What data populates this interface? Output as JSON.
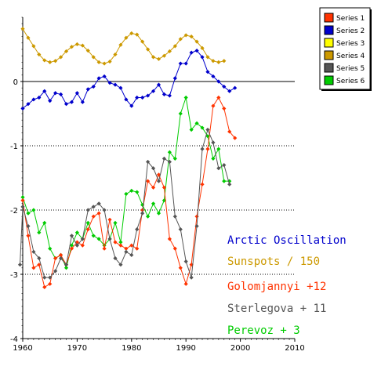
{
  "chart_data": {
    "type": "line",
    "xlim": [
      1960,
      2010
    ],
    "ylim": [
      -4,
      1
    ],
    "x_ticks": [
      "1960",
      "1970",
      "1980",
      "1990",
      "2000",
      "2010"
    ],
    "y_ticks": [
      "0",
      "-1",
      "-2",
      "-3",
      "-4"
    ],
    "y_tick_values": [
      0,
      -1,
      -2,
      -3,
      -4
    ],
    "x_tick_values": [
      1960,
      1970,
      1980,
      1990,
      2000,
      2010
    ],
    "grid": "horizontal dotted at -1, -2, -3; solid zero line",
    "legend_position": "top-right",
    "series": [
      {
        "name": "Series 1",
        "color": "#ff3300",
        "x": [
          1960,
          1961,
          1962,
          1963,
          1964,
          1965,
          1966,
          1967,
          1968,
          1969,
          1970,
          1971,
          1972,
          1973,
          1974,
          1975,
          1976,
          1977,
          1978,
          1979,
          1980,
          1981,
          1982,
          1983,
          1984,
          1985,
          1986,
          1987,
          1988,
          1989,
          1990,
          1991,
          1992,
          1993,
          1994,
          1995,
          1996,
          1997,
          1998,
          1999
        ],
        "y": [
          -1.85,
          -2.4,
          -2.9,
          -2.85,
          -3.2,
          -3.15,
          -2.75,
          -2.7,
          -2.85,
          -2.6,
          -2.5,
          -2.55,
          -2.3,
          -2.1,
          -2.05,
          -2.6,
          -2.15,
          -2.5,
          -2.55,
          -2.6,
          -2.55,
          -2.6,
          -2.0,
          -1.55,
          -1.65,
          -1.45,
          -1.65,
          -2.45,
          -2.6,
          -2.9,
          -3.15,
          -2.85,
          -2.1,
          -1.6,
          -1.05,
          -0.38,
          -0.25,
          -0.42,
          -0.78,
          -0.88
        ]
      },
      {
        "name": "Series 2",
        "color": "#0000cc",
        "x": [
          1960,
          1961,
          1962,
          1963,
          1964,
          1965,
          1966,
          1967,
          1968,
          1969,
          1970,
          1971,
          1972,
          1973,
          1974,
          1975,
          1976,
          1977,
          1978,
          1979,
          1980,
          1981,
          1982,
          1983,
          1984,
          1985,
          1986,
          1987,
          1988,
          1989,
          1990,
          1991,
          1992,
          1993,
          1994,
          1995,
          1996,
          1997,
          1998,
          1999
        ],
        "y": [
          -0.42,
          -0.35,
          -0.28,
          -0.25,
          -0.15,
          -0.3,
          -0.18,
          -0.2,
          -0.35,
          -0.32,
          -0.18,
          -0.32,
          -0.12,
          -0.08,
          0.05,
          0.08,
          -0.02,
          -0.05,
          -0.1,
          -0.28,
          -0.38,
          -0.25,
          -0.25,
          -0.22,
          -0.15,
          -0.05,
          -0.2,
          -0.22,
          0.05,
          0.28,
          0.28,
          0.45,
          0.48,
          0.38,
          0.15,
          0.08,
          0.0,
          -0.08,
          -0.15,
          -0.1
        ]
      },
      {
        "name": "Series 3",
        "color": "#ffff00",
        "x": [],
        "y": []
      },
      {
        "name": "Series 4",
        "color": "#cc9900",
        "x": [
          1960,
          1961,
          1962,
          1963,
          1964,
          1965,
          1966,
          1967,
          1968,
          1969,
          1970,
          1971,
          1972,
          1973,
          1974,
          1975,
          1976,
          1977,
          1978,
          1979,
          1980,
          1981,
          1982,
          1983,
          1984,
          1985,
          1986,
          1987,
          1988,
          1989,
          1990,
          1991,
          1992,
          1993,
          1994,
          1995,
          1996,
          1997
        ],
        "y": [
          0.82,
          0.68,
          0.55,
          0.42,
          0.33,
          0.3,
          0.32,
          0.38,
          0.47,
          0.54,
          0.58,
          0.56,
          0.48,
          0.38,
          0.3,
          0.28,
          0.31,
          0.42,
          0.57,
          0.68,
          0.75,
          0.73,
          0.62,
          0.5,
          0.38,
          0.35,
          0.4,
          0.47,
          0.55,
          0.66,
          0.72,
          0.7,
          0.62,
          0.52,
          0.38,
          0.32,
          0.3,
          0.32
        ]
      },
      {
        "name": "Series 5",
        "color": "#555555",
        "x": [
          1959.5,
          1960,
          1961,
          1962,
          1963,
          1964,
          1965,
          1966,
          1967,
          1968,
          1969,
          1970,
          1971,
          1972,
          1973,
          1974,
          1975,
          1976,
          1977,
          1978,
          1979,
          1980,
          1981,
          1982,
          1983,
          1984,
          1985,
          1986,
          1987,
          1988,
          1989,
          1990,
          1991,
          1992,
          1993,
          1994,
          1995,
          1996,
          1997,
          1998
        ],
        "y": [
          -2.85,
          -1.95,
          -2.25,
          -2.65,
          -2.75,
          -3.05,
          -3.05,
          -2.95,
          -2.75,
          -2.85,
          -2.4,
          -2.55,
          -2.45,
          -2.0,
          -1.95,
          -1.9,
          -2.0,
          -2.45,
          -2.75,
          -2.85,
          -2.65,
          -2.7,
          -2.3,
          -2.05,
          -1.25,
          -1.35,
          -1.55,
          -1.2,
          -1.25,
          -2.1,
          -2.3,
          -2.8,
          -3.05,
          -2.25,
          -1.05,
          -0.75,
          -0.95,
          -1.35,
          -1.3,
          -1.6
        ]
      },
      {
        "name": "Series 6",
        "color": "#00cc00",
        "x": [
          1960,
          1961,
          1962,
          1963,
          1964,
          1965,
          1966,
          1967,
          1968,
          1969,
          1970,
          1971,
          1972,
          1973,
          1974,
          1975,
          1976,
          1977,
          1978,
          1979,
          1980,
          1981,
          1982,
          1983,
          1984,
          1985,
          1986,
          1987,
          1988,
          1989,
          1990,
          1991,
          1992,
          1993,
          1994,
          1995,
          1996,
          1997,
          1998
        ],
        "y": [
          -1.8,
          -2.05,
          -2.0,
          -2.35,
          -2.2,
          -2.6,
          -2.75,
          -2.7,
          -2.9,
          -2.55,
          -2.35,
          -2.45,
          -2.2,
          -2.4,
          -2.45,
          -2.55,
          -2.45,
          -2.2,
          -2.5,
          -1.75,
          -1.7,
          -1.72,
          -1.92,
          -2.1,
          -1.9,
          -2.05,
          -1.85,
          -1.1,
          -1.2,
          -0.5,
          -0.25,
          -0.75,
          -0.65,
          -0.72,
          -0.85,
          -1.2,
          -1.05,
          -1.55,
          -1.55
        ]
      }
    ],
    "annotations": [
      {
        "text": "Arctic Oscillation",
        "color": "#0000cc"
      },
      {
        "text": "Sunspots / 150",
        "color": "#cc9900"
      },
      {
        "text": "Golomjannyi +12",
        "color": "#ff3300"
      },
      {
        "text": "Sterlegova + 11",
        "color": "#555555"
      },
      {
        "text": "Perevoz + 3",
        "color": "#00cc00"
      }
    ]
  }
}
